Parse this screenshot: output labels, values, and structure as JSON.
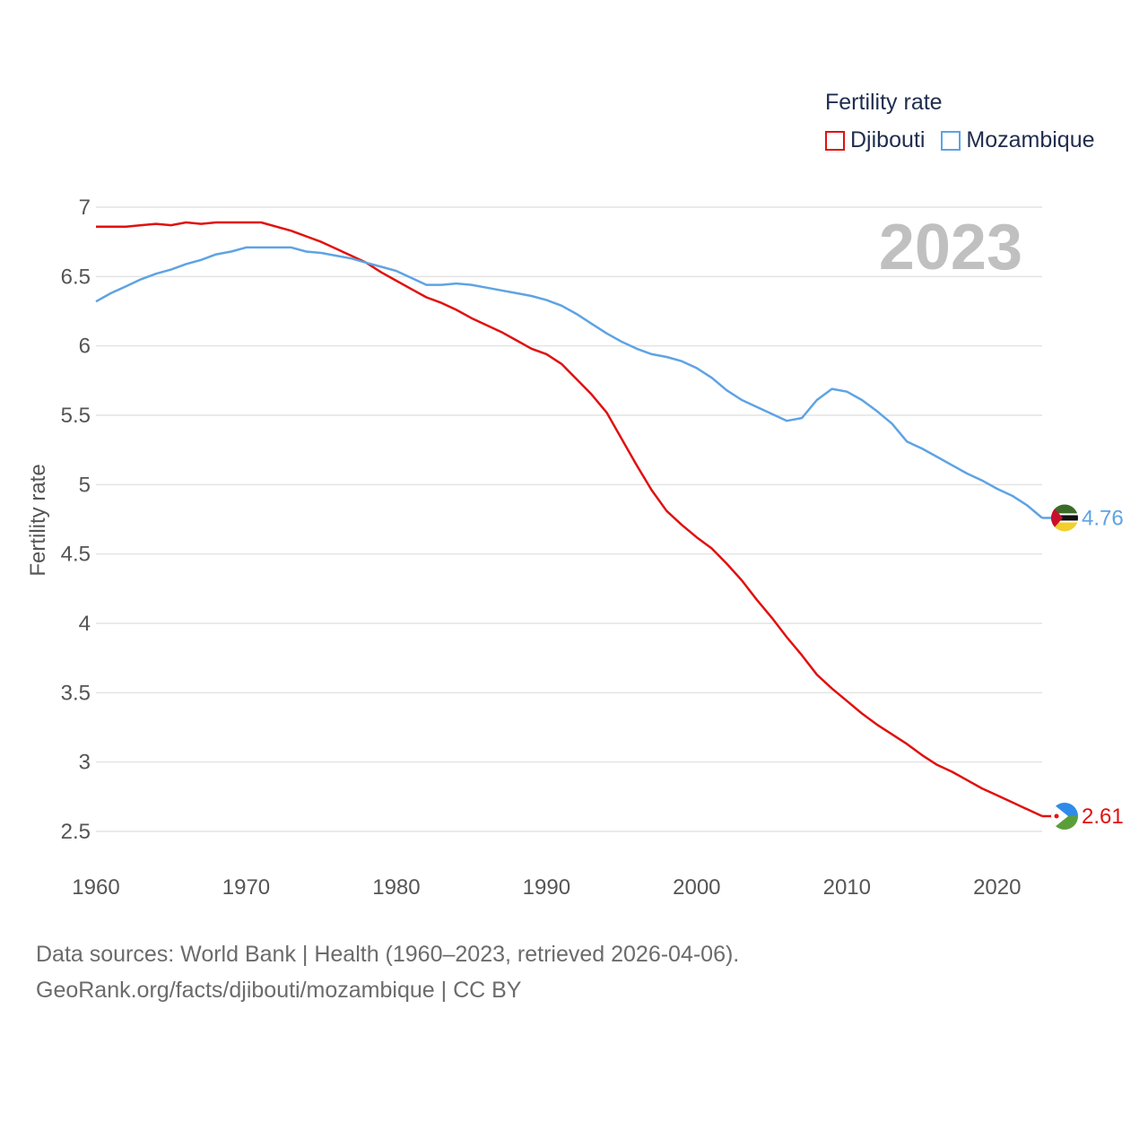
{
  "legend": {
    "title": "Fertility rate"
  },
  "source": {
    "line1": "Data sources: World Bank | Health (1960–2023, retrieved 2026-04-06).",
    "line2": "GeoRank.org/facts/djibouti/mozambique | CC BY"
  },
  "chart_data": {
    "type": "line",
    "title": "",
    "year_label": "2023",
    "xlabel": "",
    "ylabel": "Fertility rate",
    "xlim": [
      1960,
      2023
    ],
    "ylim": [
      2.5,
      7
    ],
    "x_ticks": [
      1960,
      1970,
      1980,
      1990,
      2000,
      2010,
      2020
    ],
    "y_ticks": [
      2.5,
      3,
      3.5,
      4,
      4.5,
      5,
      5.5,
      6,
      6.5,
      7
    ],
    "x_tick_labels": [
      "1960",
      "1970",
      "1980",
      "1990",
      "2000",
      "2010",
      "2020"
    ],
    "y_tick_labels": [
      "2.5",
      "3",
      "3.5",
      "4",
      "4.5",
      "5",
      "5.5",
      "6",
      "6.5",
      "7"
    ],
    "grid": true,
    "legend_position": "top-right",
    "x": [
      1960,
      1961,
      1962,
      1963,
      1964,
      1965,
      1966,
      1967,
      1968,
      1969,
      1970,
      1971,
      1972,
      1973,
      1974,
      1975,
      1976,
      1977,
      1978,
      1979,
      1980,
      1981,
      1982,
      1983,
      1984,
      1985,
      1986,
      1987,
      1988,
      1989,
      1990,
      1991,
      1992,
      1993,
      1994,
      1995,
      1996,
      1997,
      1998,
      1999,
      2000,
      2001,
      2002,
      2003,
      2004,
      2005,
      2006,
      2007,
      2008,
      2009,
      2010,
      2011,
      2012,
      2013,
      2014,
      2015,
      2016,
      2017,
      2018,
      2019,
      2020,
      2021,
      2022,
      2023
    ],
    "series": [
      {
        "name": "Djibouti",
        "color": "#e0110f",
        "end_label": "2.61",
        "values": [
          6.86,
          6.86,
          6.86,
          6.87,
          6.88,
          6.87,
          6.89,
          6.88,
          6.89,
          6.89,
          6.89,
          6.89,
          6.86,
          6.83,
          6.79,
          6.75,
          6.7,
          6.65,
          6.6,
          6.53,
          6.47,
          6.41,
          6.35,
          6.31,
          6.26,
          6.2,
          6.15,
          6.1,
          6.04,
          5.98,
          5.94,
          5.87,
          5.76,
          5.65,
          5.52,
          5.33,
          5.14,
          4.96,
          4.81,
          4.71,
          4.62,
          4.54,
          4.43,
          4.31,
          4.17,
          4.04,
          3.9,
          3.77,
          3.63,
          3.53,
          3.44,
          3.35,
          3.27,
          3.2,
          3.13,
          3.05,
          2.98,
          2.93,
          2.87,
          2.81,
          2.76,
          2.71,
          2.66,
          2.61
        ]
      },
      {
        "name": "Mozambique",
        "color": "#5ea3e4",
        "end_label": "4.76",
        "values": [
          6.32,
          6.38,
          6.43,
          6.48,
          6.52,
          6.55,
          6.59,
          6.62,
          6.66,
          6.68,
          6.71,
          6.71,
          6.71,
          6.71,
          6.68,
          6.67,
          6.65,
          6.63,
          6.6,
          6.57,
          6.54,
          6.49,
          6.44,
          6.44,
          6.45,
          6.44,
          6.42,
          6.4,
          6.38,
          6.36,
          6.33,
          6.29,
          6.23,
          6.16,
          6.09,
          6.03,
          5.98,
          5.94,
          5.92,
          5.89,
          5.84,
          5.77,
          5.68,
          5.61,
          5.56,
          5.51,
          5.46,
          5.48,
          5.61,
          5.69,
          5.67,
          5.61,
          5.53,
          5.44,
          5.31,
          5.26,
          5.2,
          5.14,
          5.08,
          5.03,
          4.97,
          4.92,
          4.85,
          4.76
        ]
      }
    ]
  }
}
